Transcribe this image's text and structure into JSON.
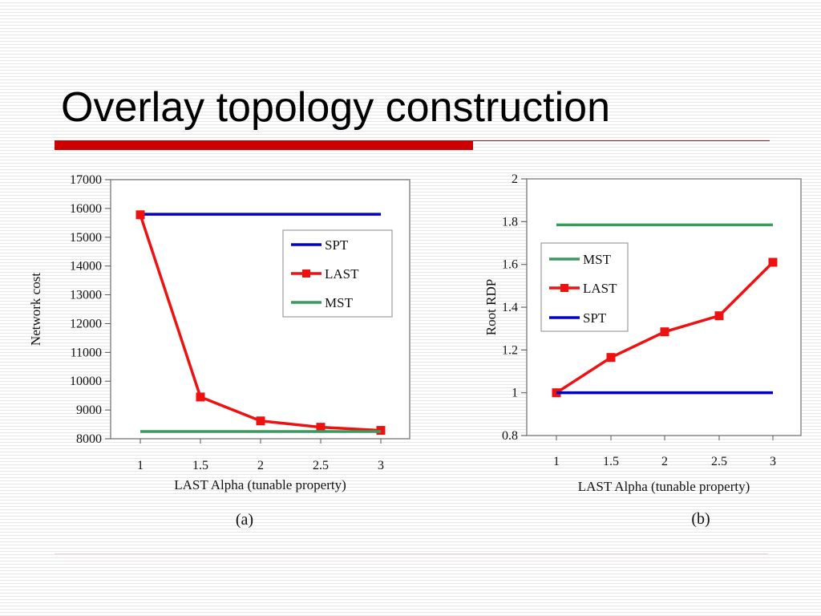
{
  "slide": {
    "title": "Overlay topology construction"
  },
  "chart_data": [
    {
      "type": "line",
      "caption": "(a)",
      "xlabel": "LAST Alpha (tunable  property)",
      "ylabel": "Network cost",
      "x": [
        1,
        1.5,
        2,
        2.5,
        3
      ],
      "x_ticks": [
        "1",
        "1.5",
        "2",
        "2.5",
        "3"
      ],
      "y_ticks": [
        "8000",
        "9000",
        "10000",
        "11000",
        "12000",
        "13000",
        "14000",
        "15000",
        "16000",
        "17000"
      ],
      "ylim": [
        8000,
        17000
      ],
      "grid": false,
      "legend_position": "upper-right",
      "series": [
        {
          "name": "SPT",
          "color": "#0000cc",
          "marker": "none",
          "values": [
            15800,
            15800,
            15800,
            15800,
            15800
          ]
        },
        {
          "name": "LAST",
          "color": "#ee1111",
          "marker": "square",
          "values": [
            15780,
            9450,
            8620,
            8400,
            8290
          ]
        },
        {
          "name": "MST",
          "color": "#3a9a5e",
          "marker": "none",
          "values": [
            8250,
            8250,
            8250,
            8250,
            8250
          ]
        }
      ]
    },
    {
      "type": "line",
      "caption": "(b)",
      "xlabel": "LAST Alpha (tunable  property)",
      "ylabel": "Root RDP",
      "x": [
        1,
        1.5,
        2,
        2.5,
        3
      ],
      "x_ticks": [
        "1",
        "1.5",
        "2",
        "2.5",
        "3"
      ],
      "y_ticks": [
        "0.8",
        "1",
        "1.2",
        "1.4",
        "1.6",
        "1.8",
        "2"
      ],
      "ylim": [
        0.8,
        2
      ],
      "grid": false,
      "legend_position": "upper-left",
      "series": [
        {
          "name": "MST",
          "color": "#3a9a5e",
          "marker": "none",
          "values": [
            1.785,
            1.785,
            1.785,
            1.785,
            1.785
          ]
        },
        {
          "name": "LAST",
          "color": "#ee1111",
          "marker": "square",
          "values": [
            1.0,
            1.165,
            1.285,
            1.36,
            1.61
          ]
        },
        {
          "name": "SPT",
          "color": "#0000cc",
          "marker": "none",
          "values": [
            1.0,
            1.0,
            1.0,
            1.0,
            1.0
          ]
        }
      ]
    }
  ]
}
